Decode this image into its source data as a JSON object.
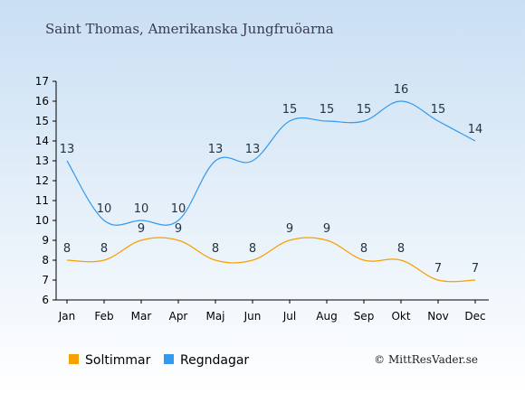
{
  "chart_data": {
    "type": "line",
    "title": "Saint Thomas, Amerikanska Jungfruöarna",
    "categories": [
      "Jan",
      "Feb",
      "Mar",
      "Apr",
      "Maj",
      "Jun",
      "Jul",
      "Aug",
      "Sep",
      "Okt",
      "Nov",
      "Dec"
    ],
    "y_ticks": [
      "6",
      "7",
      "8",
      "9",
      "10",
      "11",
      "12",
      "13",
      "14",
      "15",
      "16",
      "17"
    ],
    "ylim": [
      6,
      17
    ],
    "grid": false,
    "legend_position": "bottom-left",
    "series": [
      {
        "name": "Soltimmar",
        "color": "#f5a100",
        "values": [
          8,
          8,
          9,
          9,
          8,
          8,
          9,
          9,
          8,
          8,
          7,
          7
        ],
        "labels": [
          "8",
          "8",
          "9",
          "9",
          "8",
          "8",
          "9",
          "9",
          "8",
          "8",
          "7",
          "7"
        ]
      },
      {
        "name": "Regndagar",
        "color": "#3399ee",
        "values": [
          13,
          10,
          10,
          10,
          13,
          13,
          15,
          15,
          15,
          16,
          15,
          14
        ],
        "labels": [
          "13",
          "10",
          "10",
          "10",
          "13",
          "13",
          "15",
          "15",
          "15",
          "16",
          "15",
          "14"
        ]
      }
    ],
    "credit": "© MittResVader.se"
  }
}
